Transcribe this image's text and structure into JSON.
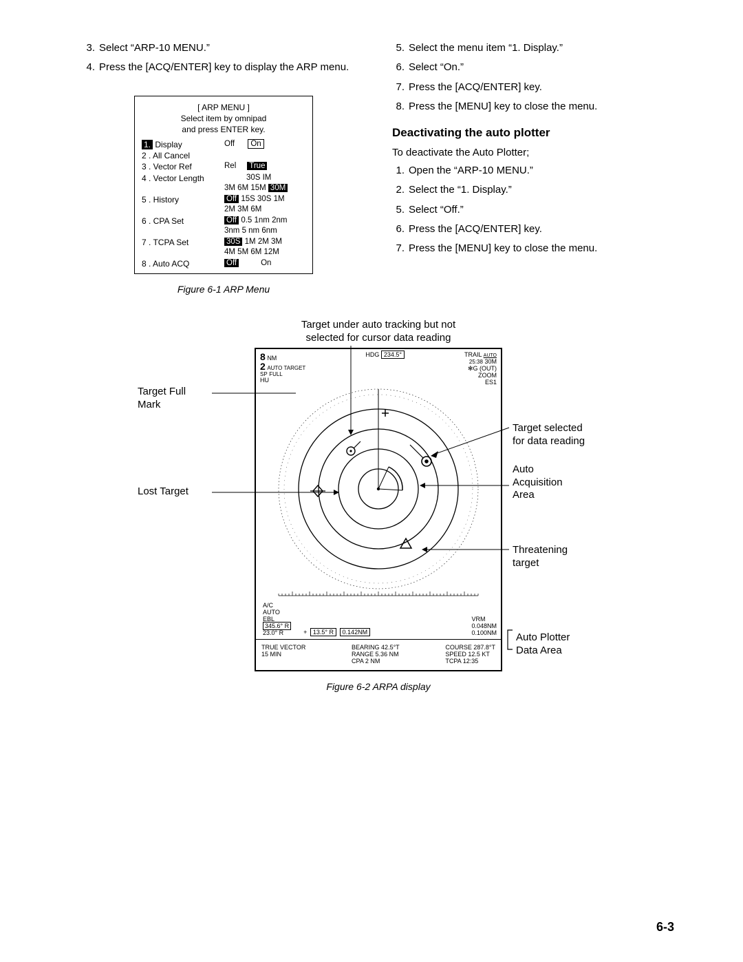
{
  "leftSteps": [
    {
      "n": "3.",
      "t": "Select “ARP-10  MENU.”"
    },
    {
      "n": "4.",
      "t": "Press the [ACQ/ENTER] key to display the ARP menu."
    }
  ],
  "rightSteps": [
    {
      "n": "5.",
      "t": "Select the menu item “1. Display.”"
    },
    {
      "n": "6.",
      "t": "Select “On.”"
    },
    {
      "n": "7.",
      "t": "Press the [ACQ/ENTER] key."
    },
    {
      "n": "8.",
      "t": "Press the [MENU] key to close the menu."
    }
  ],
  "arpMenu": {
    "title": "[ ARP MENU ]",
    "sub1": "Select item by omnipad",
    "sub2": "and press ENTER key.",
    "rows": [
      {
        "label_inv": "1.",
        "label": " Display",
        "opts": [
          {
            "t": "Off"
          },
          {
            "sp": 6
          },
          {
            "t": "On",
            "box": true
          }
        ]
      },
      {
        "label": "2 . All Cancel",
        "opts": []
      },
      {
        "label": "3 . Vector Ref",
        "opts": [
          {
            "t": "Rel"
          },
          {
            "sp": 5
          },
          {
            "t": "True",
            "inv": true
          }
        ]
      },
      {
        "label": "4 . Vector Length",
        "opts": [
          {
            "sp": 10
          },
          {
            "t": "30S  IM"
          }
        ],
        "opts2": [
          {
            "t": "3M  6M  15M "
          },
          {
            "t": "30M",
            "inv": true
          }
        ]
      },
      {
        "label": "5 . History",
        "opts": [
          {
            "t": "Off",
            "inv": true
          },
          {
            "t": " 15S  30S  1M"
          }
        ],
        "opts2": [
          {
            "t": "2M  3M  6M"
          }
        ]
      },
      {
        "label": "6 . CPA Set",
        "opts": [
          {
            "t": "Off",
            "inv": true
          },
          {
            "t": " 0.5  1nm  2nm"
          }
        ],
        "opts2": [
          {
            "t": "3nm  5  nm  6nm"
          }
        ]
      },
      {
        "label": "7 . TCPA Set",
        "opts": [
          {
            "t": "30S",
            "inv": true
          },
          {
            "t": " 1M  2M  3M"
          }
        ],
        "opts2": [
          {
            "t": "4M  5M  6M  12M"
          }
        ]
      },
      {
        "label": "8 . Auto ACQ",
        "opts": [
          {
            "t": "Off",
            "inv": true
          },
          {
            "sp": 10
          },
          {
            "t": "On"
          }
        ]
      }
    ]
  },
  "fig1Caption": "Figure 6-1 ARP Menu",
  "deactHeading": "Deactivating the auto plotter",
  "deactIntro": "To deactivate the Auto Plotter;",
  "deactSteps": [
    {
      "n": "1.",
      "t": "Open the “ARP-10 MENU.”"
    },
    {
      "n": "2.",
      "t": "Select the “1. Display.”"
    },
    {
      "n": "5.",
      "t": "Select “Off.”"
    },
    {
      "n": "6.",
      "t": "Press the [ACQ/ENTER] key."
    },
    {
      "n": "7.",
      "t": "Press the [MENU] key to close the menu."
    }
  ],
  "radarAnnotTop1": "Target under auto tracking but not",
  "radarAnnotTop2": "selected for cursor data reading",
  "radar": {
    "rangeBig": "8",
    "rangeSmall": "2",
    "nm": "NM",
    "autoTarget": "AUTO TARGET",
    "sp": "SP",
    "full": "FULL",
    "hu": "HU",
    "hdg": "HDG",
    "hdgVal": "234.5°",
    "trail": "TRAIL",
    "trailAuto": "AUTO",
    "trailTime": "25:38",
    "trail30m": "30M",
    "gout": "✻G (OUT)",
    "zoom": "ZOOM",
    "es1": "ES1",
    "ac": "A/C",
    "auto": "AUTO",
    "ebl": "EBL",
    "eblVal1": "345.6° R",
    "eblVal2": "23.0° R",
    "plus": "+",
    "cursVal1": "13.5° R",
    "cursVal2": "0.142NM",
    "vrm": "VRM",
    "vrmVal1": "0.048NM",
    "vrmVal2": "0.100NM",
    "trueVector": "TRUE VECTOR",
    "t15": "15 MIN",
    "bearing": "BEARING 42.5°T",
    "range": "RANGE    5.36 NM",
    "cpa": "CPA         2 NM",
    "course": "COURSE 287.8°T",
    "speed": "SPEED    12.5 KT",
    "tcpa": "TCPA      12:35"
  },
  "sideLabels": {
    "targetFull": "Target Full\nMark",
    "lostTarget": "Lost Target",
    "targetSelected": "Target selected\nfor data reading",
    "autoAcq": "Auto\nAcquisition\nArea",
    "threatening": "Threatening\ntarget",
    "autoPlotterData": "Auto Plotter\nData Area"
  },
  "fig2Caption": "Figure 6-2 ARPA display",
  "pageNum": "6-3"
}
